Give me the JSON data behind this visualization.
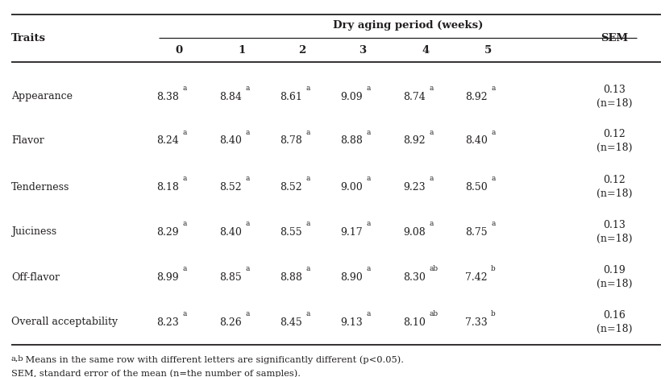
{
  "header_group": "Dry aging period (weeks)",
  "col_headers": [
    "0",
    "1",
    "2",
    "3",
    "4",
    "5"
  ],
  "traits_label": "Traits",
  "sem_label": "SEM",
  "traits": [
    "Appearance",
    "Flavor",
    "Tenderness",
    "Juiciness",
    "Off-flavor",
    "Overall acceptability"
  ],
  "values": [
    [
      "8.38",
      "8.84",
      "8.61",
      "9.09",
      "8.74",
      "8.92"
    ],
    [
      "8.24",
      "8.40",
      "8.78",
      "8.88",
      "8.92",
      "8.40"
    ],
    [
      "8.18",
      "8.52",
      "8.52",
      "9.00",
      "9.23",
      "8.50"
    ],
    [
      "8.29",
      "8.40",
      "8.55",
      "9.17",
      "9.08",
      "8.75"
    ],
    [
      "8.99",
      "8.85",
      "8.88",
      "8.90",
      "8.30",
      "7.42"
    ],
    [
      "8.23",
      "8.26",
      "8.45",
      "9.13",
      "8.10",
      "7.33"
    ]
  ],
  "superscripts": [
    [
      "a",
      "a",
      "a",
      "a",
      "a",
      "a"
    ],
    [
      "a",
      "a",
      "a",
      "a",
      "a",
      "a"
    ],
    [
      "a",
      "a",
      "a",
      "a",
      "a",
      "a"
    ],
    [
      "a",
      "a",
      "a",
      "a",
      "a",
      "a"
    ],
    [
      "a",
      "a",
      "a",
      "a",
      "ab",
      "b"
    ],
    [
      "a",
      "a",
      "a",
      "a",
      "ab",
      "b"
    ]
  ],
  "sem_values": [
    "0.13\n(n=18)",
    "0.12\n(n=18)",
    "0.12\n(n=18)",
    "0.13\n(n=18)",
    "0.19\n(n=18)",
    "0.16\n(n=18)"
  ],
  "footnote1_prefix": "a,b",
  "footnote1_body": " Means in the same row with different letters are significantly different (p<0.05).",
  "footnote2": "SEM, standard error of the mean (n=the number of samples).",
  "bg_color": "#ffffff",
  "text_color": "#231f20",
  "line_color": "#231f20",
  "font_size": 9.0,
  "header_font_size": 9.5,
  "footnote_font_size": 8.2
}
